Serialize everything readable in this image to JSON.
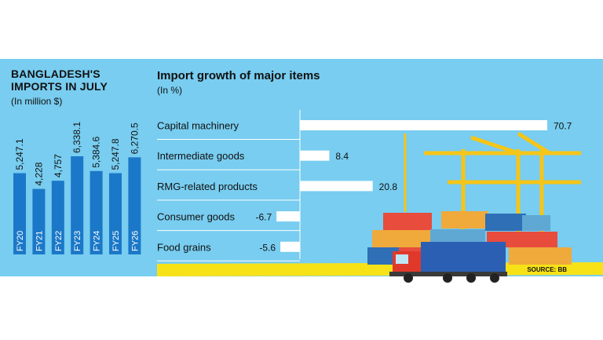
{
  "left_panel": {
    "title": "BANGLADESH'S IMPORTS IN JULY",
    "unit": "(In million $)"
  },
  "right_panel": {
    "title": "Import growth of major items",
    "unit": "(In %)"
  },
  "source": "SOURCE: BB",
  "colors": {
    "panel": "#78cdf0",
    "bar_blue": "#1b78c8",
    "bar_white": "#ffffff",
    "footer": "#f7e218"
  },
  "chart_data": [
    {
      "type": "bar",
      "orientation": "vertical",
      "title": "BANGLADESH'S IMPORTS IN JULY",
      "ylabel": "(In million $)",
      "categories": [
        "FY20",
        "FY21",
        "FY22",
        "FY23",
        "FY24",
        "FY25",
        "FY26"
      ],
      "values": [
        5247.1,
        4228,
        4757,
        6338.1,
        5384.6,
        5247.8,
        6270.5
      ],
      "value_labels": [
        "5,247.1",
        "4,228",
        "4,757",
        "6,338.1",
        "5,384.6",
        "5,247.8",
        "6,270.5"
      ]
    },
    {
      "type": "bar",
      "orientation": "horizontal",
      "title": "Import growth of major items",
      "xlabel": "(In %)",
      "categories": [
        "Capital machinery",
        "Intermediate goods",
        "RMG-related products",
        "Consumer goods",
        "Food grains"
      ],
      "values": [
        70.7,
        8.4,
        20.8,
        -6.7,
        -5.6
      ]
    }
  ]
}
